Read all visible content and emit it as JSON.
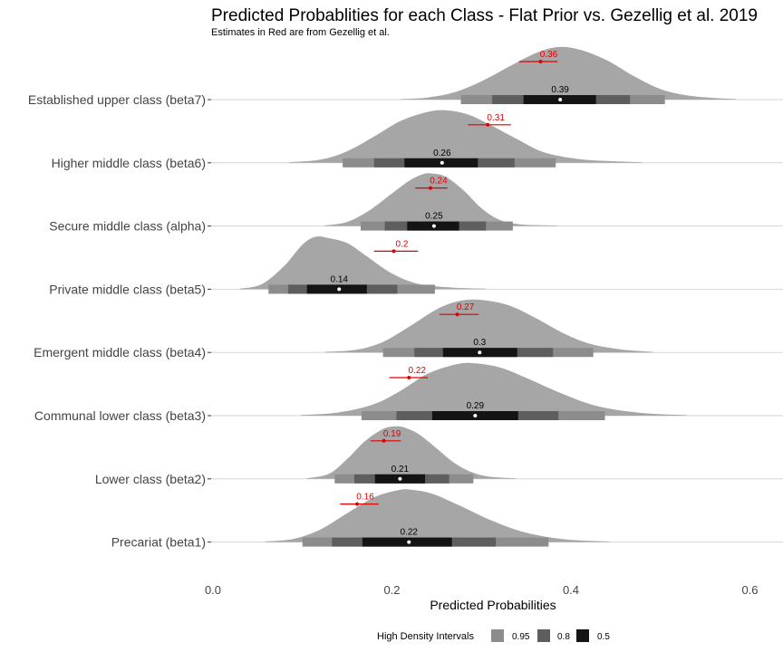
{
  "chart_data": {
    "type": "density-interval",
    "title": "Predicted Probablities for each Class - Flat Prior vs. Gezellig et al. 2019",
    "subtitle": "Estimates in Red are from Gezellig et al.",
    "xlabel": "Predicted Probabilities",
    "xlim": [
      -0.005,
      0.635
    ],
    "xticks": [
      0.0,
      0.2,
      0.4,
      0.6
    ],
    "xtick_labels": [
      "0.0",
      "0.2",
      "0.4",
      "0.6"
    ],
    "legend": {
      "title": "High Density Intervals",
      "placement": "bottom",
      "entries": [
        {
          "label": "0.95",
          "color": "#8c8c8c"
        },
        {
          "label": "0.8",
          "color": "#5e5e5e"
        },
        {
          "label": "0.5",
          "color": "#141414"
        }
      ]
    },
    "colors": {
      "density": "#a6a6a6",
      "prior": "#e00000",
      "axis_line": "#d6d6d6"
    },
    "classes": [
      {
        "name": "Established upper class (beta7)",
        "flat_label": "0.39",
        "flat_median": 0.388,
        "hdi": {
          "0.95": [
            0.277,
            0.505
          ],
          "0.8": [
            0.312,
            0.466
          ],
          "0.5": [
            0.347,
            0.428
          ]
        },
        "density": {
          "x": [
            0.21,
            0.24,
            0.27,
            0.3,
            0.33,
            0.36,
            0.385,
            0.41,
            0.44,
            0.47,
            0.5,
            0.53,
            0.56,
            0.584
          ],
          "y": [
            0.01,
            0.04,
            0.14,
            0.35,
            0.62,
            0.88,
            1.0,
            0.95,
            0.75,
            0.45,
            0.2,
            0.08,
            0.03,
            0.01
          ]
        },
        "prior_label": "0.36",
        "prior_point": 0.366,
        "prior_ci": [
          0.342,
          0.385
        ]
      },
      {
        "name": "Higher middle class (beta6)",
        "flat_label": "0.26",
        "flat_median": 0.256,
        "hdi": {
          "0.95": [
            0.145,
            0.383
          ],
          "0.8": [
            0.18,
            0.337
          ],
          "0.5": [
            0.214,
            0.296
          ]
        },
        "density": {
          "x": [
            0.085,
            0.12,
            0.15,
            0.18,
            0.21,
            0.24,
            0.26,
            0.285,
            0.31,
            0.34,
            0.37,
            0.41,
            0.45,
            0.48
          ],
          "y": [
            0.01,
            0.06,
            0.22,
            0.5,
            0.8,
            0.97,
            1.0,
            0.92,
            0.72,
            0.45,
            0.2,
            0.07,
            0.03,
            0.01
          ]
        },
        "prior_label": "0.31",
        "prior_point": 0.307,
        "prior_ci": [
          0.285,
          0.333
        ]
      },
      {
        "name": "Secure middle class (alpha)",
        "flat_label": "0.25",
        "flat_median": 0.247,
        "hdi": {
          "0.95": [
            0.165,
            0.335
          ],
          "0.8": [
            0.192,
            0.305
          ],
          "0.5": [
            0.217,
            0.275
          ]
        },
        "density": {
          "x": [
            0.125,
            0.15,
            0.175,
            0.2,
            0.22,
            0.235,
            0.245,
            0.26,
            0.28,
            0.3,
            0.32,
            0.345,
            0.385
          ],
          "y": [
            0.01,
            0.08,
            0.3,
            0.62,
            0.87,
            0.99,
            1.0,
            0.94,
            0.68,
            0.34,
            0.12,
            0.03,
            0.01
          ]
        },
        "prior_label": "0.24",
        "prior_point": 0.243,
        "prior_ci": [
          0.226,
          0.262
        ]
      },
      {
        "name": "Private middle class (beta5)",
        "flat_label": "0.14",
        "flat_median": 0.141,
        "hdi": {
          "0.95": [
            0.062,
            0.248
          ],
          "0.8": [
            0.084,
            0.206
          ],
          "0.5": [
            0.105,
            0.172
          ]
        },
        "density": {
          "x": [
            0.03,
            0.055,
            0.08,
            0.1,
            0.115,
            0.13,
            0.15,
            0.17,
            0.2,
            0.23,
            0.27,
            0.305
          ],
          "y": [
            0.01,
            0.1,
            0.45,
            0.85,
            1.0,
            0.97,
            0.88,
            0.65,
            0.3,
            0.1,
            0.03,
            0.01
          ]
        },
        "prior_label": "0.2",
        "prior_point": 0.202,
        "prior_ci": [
          0.18,
          0.229
        ]
      },
      {
        "name": "Emergent middle class (beta4)",
        "flat_label": "0.3",
        "flat_median": 0.298,
        "hdi": {
          "0.95": [
            0.19,
            0.425
          ],
          "0.8": [
            0.225,
            0.38
          ],
          "0.5": [
            0.257,
            0.34
          ]
        },
        "density": {
          "x": [
            0.125,
            0.16,
            0.19,
            0.22,
            0.25,
            0.275,
            0.3,
            0.33,
            0.36,
            0.39,
            0.42,
            0.455,
            0.492
          ],
          "y": [
            0.01,
            0.05,
            0.2,
            0.5,
            0.82,
            0.98,
            1.0,
            0.9,
            0.66,
            0.38,
            0.17,
            0.06,
            0.01
          ]
        },
        "prior_label": "0.27",
        "prior_point": 0.273,
        "prior_ci": [
          0.253,
          0.297
        ]
      },
      {
        "name": "Communal lower class (beta3)",
        "flat_label": "0.29",
        "flat_median": 0.293,
        "hdi": {
          "0.95": [
            0.166,
            0.438
          ],
          "0.8": [
            0.205,
            0.386
          ],
          "0.5": [
            0.245,
            0.341
          ]
        },
        "density": {
          "x": [
            0.098,
            0.14,
            0.18,
            0.21,
            0.24,
            0.27,
            0.29,
            0.32,
            0.35,
            0.39,
            0.43,
            0.48,
            0.53
          ],
          "y": [
            0.01,
            0.06,
            0.22,
            0.48,
            0.8,
            0.97,
            1.0,
            0.92,
            0.72,
            0.42,
            0.18,
            0.05,
            0.01
          ]
        },
        "prior_label": "0.22",
        "prior_point": 0.219,
        "prior_ci": [
          0.197,
          0.24
        ]
      },
      {
        "name": "Lower class (beta2)",
        "flat_label": "0.21",
        "flat_median": 0.209,
        "hdi": {
          "0.95": [
            0.136,
            0.291
          ],
          "0.8": [
            0.158,
            0.264
          ],
          "0.5": [
            0.181,
            0.237
          ]
        },
        "density": {
          "x": [
            0.105,
            0.13,
            0.15,
            0.17,
            0.19,
            0.205,
            0.215,
            0.23,
            0.25,
            0.27,
            0.29,
            0.31,
            0.338
          ],
          "y": [
            0.01,
            0.1,
            0.38,
            0.72,
            0.95,
            1.0,
            0.97,
            0.85,
            0.58,
            0.3,
            0.12,
            0.04,
            0.01
          ]
        },
        "prior_label": "0.19",
        "prior_point": 0.191,
        "prior_ci": [
          0.176,
          0.21
        ]
      },
      {
        "name": "Precariat (beta1)",
        "flat_label": "0.22",
        "flat_median": 0.219,
        "hdi": {
          "0.95": [
            0.1,
            0.375
          ],
          "0.8": [
            0.133,
            0.316
          ],
          "0.5": [
            0.167,
            0.267
          ]
        },
        "density": {
          "x": [
            0.058,
            0.09,
            0.12,
            0.15,
            0.18,
            0.205,
            0.22,
            0.245,
            0.275,
            0.31,
            0.35,
            0.395,
            0.443
          ],
          "y": [
            0.01,
            0.06,
            0.24,
            0.55,
            0.85,
            0.98,
            1.0,
            0.92,
            0.7,
            0.42,
            0.18,
            0.05,
            0.01
          ]
        },
        "prior_label": "0.16",
        "prior_point": 0.161,
        "prior_ci": [
          0.142,
          0.185
        ]
      }
    ]
  }
}
